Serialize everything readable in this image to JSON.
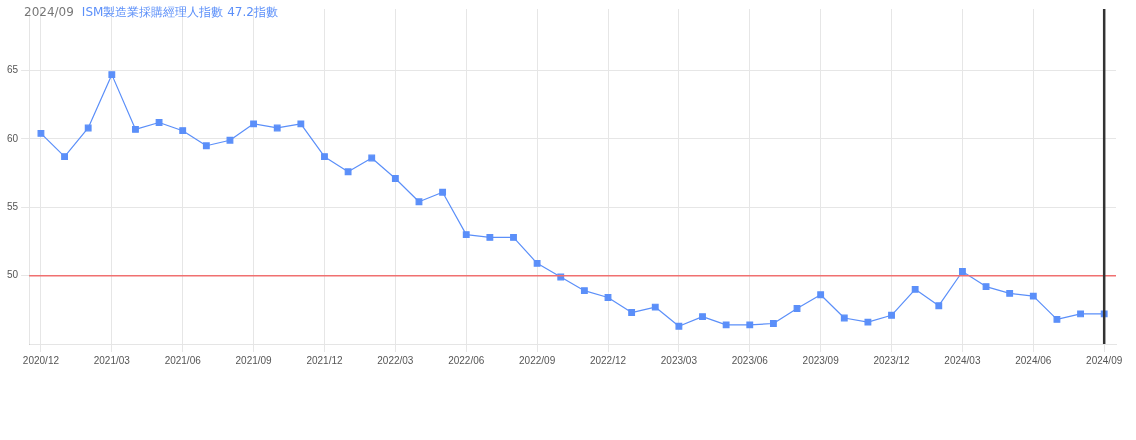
{
  "chart_data": {
    "type": "line",
    "title": "2024/09",
    "subtitle": "ISM製造業採購經理人指數 47.2指數",
    "categories": [
      "2020/12",
      null,
      null,
      "2021/03",
      null,
      null,
      "2021/06",
      null,
      null,
      "2021/09",
      null,
      null,
      "2021/12",
      null,
      null,
      "2022/03",
      null,
      null,
      "2022/06",
      null,
      null,
      "2022/09",
      null,
      null,
      "2022/12",
      null,
      null,
      "2023/03",
      null,
      null,
      "2023/06",
      null,
      null,
      "2023/09",
      null,
      null,
      "2023/12",
      null,
      null,
      "2024/03",
      null,
      null,
      "2024/06",
      null,
      null,
      "2024/09"
    ],
    "series": [
      {
        "color": "#5b8ff9",
        "values": [
          60.4,
          58.7,
          60.8,
          64.7,
          60.7,
          61.2,
          60.6,
          59.5,
          59.9,
          61.1,
          60.8,
          61.1,
          58.7,
          57.6,
          58.6,
          57.1,
          55.4,
          56.1,
          53.0,
          52.8,
          52.8,
          50.9,
          49.9,
          48.9,
          48.4,
          47.3,
          47.7,
          46.3,
          47.0,
          46.4,
          46.4,
          46.5,
          47.6,
          48.6,
          46.9,
          46.6,
          47.1,
          49.0,
          47.8,
          50.3,
          49.2,
          48.7,
          48.5,
          46.8,
          47.2,
          47.2
        ]
      }
    ],
    "ylim": [
      45,
      69.5
    ],
    "yticks": [
      50,
      55,
      60,
      65
    ],
    "ref_lines": [
      {
        "axis": "y",
        "value": 50,
        "color": "#f07070"
      },
      {
        "axis": "x",
        "value": "2024/09",
        "color": "#333333"
      }
    ],
    "grid": true,
    "legend": false,
    "marker": "square",
    "line_style": "solid"
  }
}
